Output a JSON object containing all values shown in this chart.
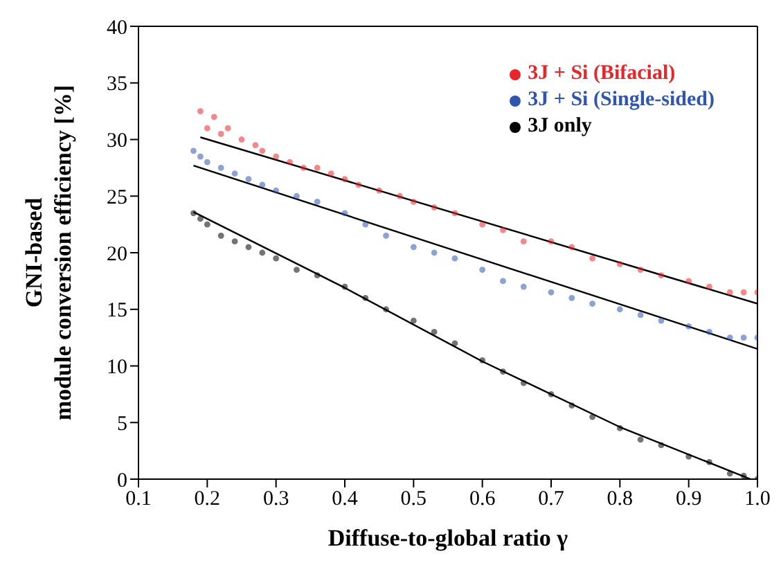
{
  "chart_data": {
    "type": "scatter",
    "xlabel": "Diffuse-to-global ratio γ",
    "ylabel": "GNI-based\nmodule conversion efficiency [%]",
    "xlim": [
      0.1,
      1.0
    ],
    "xticks": [
      0.1,
      0.2,
      0.3,
      0.4,
      0.5,
      0.6,
      0.7,
      0.8,
      0.9,
      {
        "value": 1.0,
        "label": "1.0"
      }
    ],
    "ylim": [
      0,
      40
    ],
    "yticks": [
      0,
      5,
      10,
      15,
      20,
      25,
      30,
      35,
      40
    ],
    "grid": false,
    "legend": "top right",
    "marker": "circle",
    "series": [
      {
        "name": "3J + Si (Bifacial)",
        "color": "#e8262a",
        "x": [
          0.19,
          0.2,
          0.21,
          0.22,
          0.23,
          0.25,
          0.27,
          0.28,
          0.3,
          0.32,
          0.34,
          0.36,
          0.38,
          0.4,
          0.42,
          0.45,
          0.48,
          0.5,
          0.53,
          0.56,
          0.6,
          0.63,
          0.66,
          0.7,
          0.73,
          0.76,
          0.8,
          0.83,
          0.86,
          0.9,
          0.93,
          0.96,
          0.98,
          1.0
        ],
        "values": [
          32.5,
          31,
          32,
          30.5,
          31,
          30,
          29.5,
          29,
          28.5,
          28,
          27.5,
          27.5,
          27,
          26.5,
          26,
          25.5,
          25,
          24.5,
          24,
          23.5,
          22.5,
          22,
          21,
          21,
          20.5,
          19.5,
          19,
          18.5,
          18,
          17.5,
          17,
          16.5,
          16.5,
          16.5
        ]
      },
      {
        "name": "3J + Si (Single-sided)",
        "color": "#2e55b0",
        "x": [
          0.18,
          0.19,
          0.2,
          0.22,
          0.24,
          0.26,
          0.28,
          0.3,
          0.33,
          0.36,
          0.4,
          0.43,
          0.46,
          0.5,
          0.53,
          0.56,
          0.6,
          0.63,
          0.66,
          0.7,
          0.73,
          0.76,
          0.8,
          0.83,
          0.86,
          0.9,
          0.93,
          0.96,
          0.98,
          1.0
        ],
        "values": [
          29,
          28.5,
          28,
          27.5,
          27,
          26.5,
          26,
          25.5,
          25,
          24.5,
          23.5,
          22.5,
          21.5,
          20.5,
          20,
          19.5,
          18.5,
          17.5,
          17,
          16.5,
          16,
          15.5,
          15,
          14.5,
          14,
          13.5,
          13,
          12.5,
          12.5,
          12.5
        ]
      },
      {
        "name": "3J only",
        "color": "#000000",
        "x": [
          0.18,
          0.19,
          0.2,
          0.22,
          0.24,
          0.26,
          0.28,
          0.3,
          0.33,
          0.36,
          0.4,
          0.43,
          0.46,
          0.5,
          0.53,
          0.56,
          0.6,
          0.63,
          0.66,
          0.7,
          0.73,
          0.76,
          0.8,
          0.83,
          0.86,
          0.9,
          0.93,
          0.96,
          0.98,
          1.0
        ],
        "values": [
          23.5,
          23,
          22.5,
          21.5,
          21,
          20.5,
          20,
          19.5,
          18.5,
          18,
          17,
          16,
          15,
          14,
          13,
          12,
          10.5,
          9.5,
          8.5,
          7.5,
          6.5,
          5.5,
          4.5,
          3.5,
          3,
          2,
          1.5,
          0.5,
          0.3,
          0
        ]
      },
      {
        "type": "line",
        "marker": "none",
        "color": "#000000",
        "x": [
          0.19,
          1.0
        ],
        "values": [
          30.2,
          15.5
        ]
      },
      {
        "type": "line",
        "marker": "none",
        "color": "#000000",
        "x": [
          0.18,
          1.0
        ],
        "values": [
          27.7,
          11.5
        ]
      },
      {
        "type": "line",
        "marker": "none",
        "color": "#000000",
        "x": [
          0.18,
          0.4,
          0.6,
          0.8,
          0.99
        ],
        "values": [
          23.6,
          16.9,
          10.4,
          4.6,
          0
        ]
      }
    ]
  }
}
